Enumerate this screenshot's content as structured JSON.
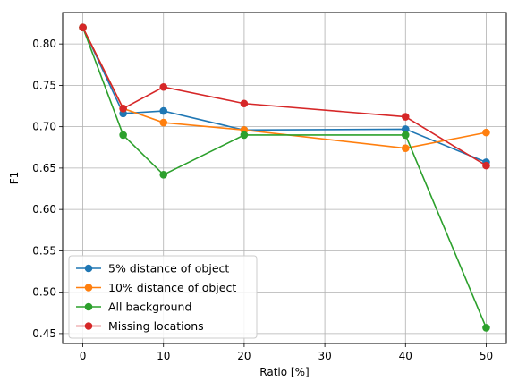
{
  "chart_data": {
    "type": "line",
    "xlabel": "Ratio [%]",
    "ylabel": "F1",
    "xlim": [
      -2.5,
      52.5
    ],
    "ylim": [
      0.438,
      0.838
    ],
    "xticks": [
      "0",
      "10",
      "20",
      "30",
      "40",
      "50"
    ],
    "yticks": [
      "0.45",
      "0.50",
      "0.55",
      "0.60",
      "0.65",
      "0.70",
      "0.75",
      "0.80"
    ],
    "grid": true,
    "legend_position": "lower-left",
    "x": [
      0,
      5,
      10,
      20,
      40,
      50
    ],
    "series": [
      {
        "name": "5% distance of object",
        "color": "#1f77b4",
        "values": [
          0.82,
          0.716,
          0.719,
          0.696,
          0.697,
          0.657
        ]
      },
      {
        "name": "10% distance of object",
        "color": "#ff7f0e",
        "values": [
          0.82,
          0.722,
          0.705,
          0.696,
          0.674,
          0.693
        ]
      },
      {
        "name": "All background",
        "color": "#2ca02c",
        "values": [
          0.82,
          0.69,
          0.642,
          0.69,
          0.69,
          0.457
        ]
      },
      {
        "name": "Missing locations",
        "color": "#d62728",
        "values": [
          0.82,
          0.722,
          0.748,
          0.728,
          0.712,
          0.653
        ]
      }
    ]
  }
}
